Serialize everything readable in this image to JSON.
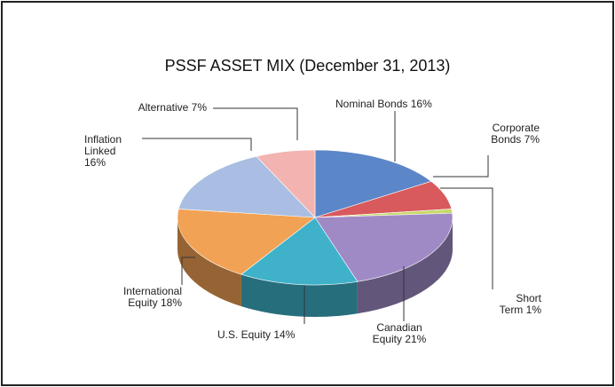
{
  "chart_data": {
    "type": "pie",
    "title": "PSSF ASSET MIX (December 31, 2013)",
    "categories": [
      "Nominal Bonds",
      "Corporate Bonds",
      "Short Term",
      "Canadian Equity",
      "U.S. Equity",
      "International Equity",
      "Inflation Linked",
      "Alternative"
    ],
    "values": [
      16,
      7,
      1,
      21,
      14,
      18,
      16,
      7
    ],
    "value_labels": [
      "16%",
      "7%",
      "1%",
      "21%",
      "14%",
      "18%",
      "16%",
      "7%"
    ],
    "colors": [
      "#5b86c8",
      "#d85a5c",
      "#c9d96a",
      "#a08ac6",
      "#3fb2ca",
      "#f2a254",
      "#a9bee2",
      "#f2b3b1"
    ]
  }
}
